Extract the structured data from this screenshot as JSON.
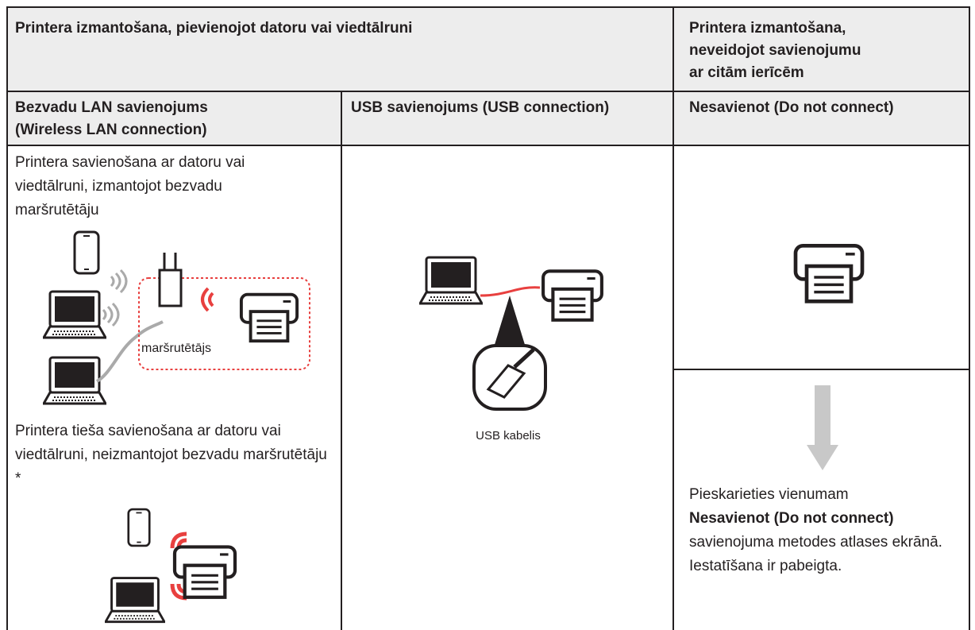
{
  "header": {
    "left": "Printera izmantošana, pievienojot datoru vai viedtālruni",
    "right_lines": [
      "Printera izmantošana,",
      "neveidojot savienojumu",
      "ar citām ierīcēm"
    ]
  },
  "columns": [
    {
      "title_lines": [
        "Bezvadu LAN savienojums",
        "(Wireless LAN connection)"
      ]
    },
    {
      "title": "USB savienojums (USB connection)"
    },
    {
      "title": "Nesavienot (Do not connect)"
    }
  ],
  "wireless": {
    "router_caption": "Printera savienošana ar datoru vai viedtālruni, izmantojot bezvadu maršrutētāju",
    "router_label": "maršrutētājs",
    "direct_caption": "Printera tieša savienošana ar datoru vai viedtālruni, neizmantojot bezvadu maršrutētāju *"
  },
  "usb": {
    "cable_label": "USB kabelis"
  },
  "no_connect": {
    "text_before": "Pieskarieties vienumam",
    "bold": "Nesavienot (Do not connect)",
    "text_after": "savienojuma metodes atlases ekrānā. Iestatīšana ir pabeigta."
  }
}
